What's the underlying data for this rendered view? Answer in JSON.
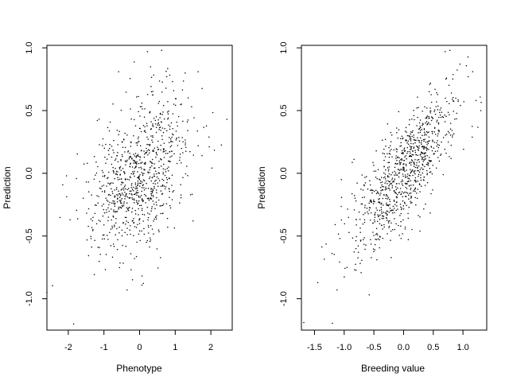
{
  "chart_data": [
    {
      "type": "scatter",
      "title": "",
      "xlabel": "Phenotype",
      "ylabel": "Prediction",
      "xlim": [
        -2.6,
        2.6
      ],
      "ylim": [
        -1.25,
        1.02
      ],
      "xticks": [
        -2,
        -1,
        0,
        1,
        2
      ],
      "yticks": [
        -1.0,
        -0.5,
        0.0,
        0.5,
        1.0
      ],
      "xtick_labels": [
        "-2",
        "-1",
        "0",
        "1",
        "2"
      ],
      "ytick_labels": [
        "-1.0",
        "-0.5",
        "0.0",
        "0.5",
        "1.0"
      ],
      "grid": false,
      "legend": "none",
      "marker_color": "#000000",
      "n_points": 900,
      "relationship": {
        "x_mean": 0,
        "x_sd": 0.68,
        "y_mean": 0,
        "y_sd": 0.32,
        "correlation": 0.45,
        "seed": 7
      },
      "notable_points": [
        {
          "x": -2.6,
          "y": -0.95
        },
        {
          "x": -2.05,
          "y": -0.02
        },
        {
          "x": -1.85,
          "y": -1.2
        },
        {
          "x": 0.22,
          "y": 0.97
        },
        {
          "x": 0.62,
          "y": 0.98
        },
        {
          "x": 2.45,
          "y": 0.43
        },
        {
          "x": 1.5,
          "y": -0.38
        },
        {
          "x": -0.35,
          "y": -0.93
        }
      ]
    },
    {
      "type": "scatter",
      "title": "",
      "xlabel": "Breeding value",
      "ylabel": "Prediction",
      "xlim": [
        -1.72,
        1.4
      ],
      "ylim": [
        -1.25,
        1.02
      ],
      "xticks": [
        -1.5,
        -1.0,
        -0.5,
        0.0,
        0.5,
        1.0
      ],
      "yticks": [
        -1.0,
        -0.5,
        0.0,
        0.5,
        1.0
      ],
      "xtick_labels": [
        "-1.5",
        "-1.0",
        "-0.5",
        "0.0",
        "0.5",
        "1.0"
      ],
      "ytick_labels": [
        "-1.0",
        "-0.5",
        "0.0",
        "0.5",
        "1.0"
      ],
      "grid": false,
      "legend": "none",
      "marker_color": "#000000",
      "n_points": 900,
      "relationship": {
        "x_mean": 0,
        "x_sd": 0.45,
        "y_mean": 0,
        "y_sd": 0.32,
        "correlation": 0.78,
        "seed": 13
      },
      "notable_points": [
        {
          "x": -1.68,
          "y": -1.19
        },
        {
          "x": -1.12,
          "y": -0.93
        },
        {
          "x": 0.7,
          "y": 0.97
        },
        {
          "x": 0.78,
          "y": 0.98
        },
        {
          "x": 0.95,
          "y": 0.87
        },
        {
          "x": 1.3,
          "y": 0.5
        },
        {
          "x": 1.22,
          "y": 0.58
        }
      ]
    }
  ]
}
